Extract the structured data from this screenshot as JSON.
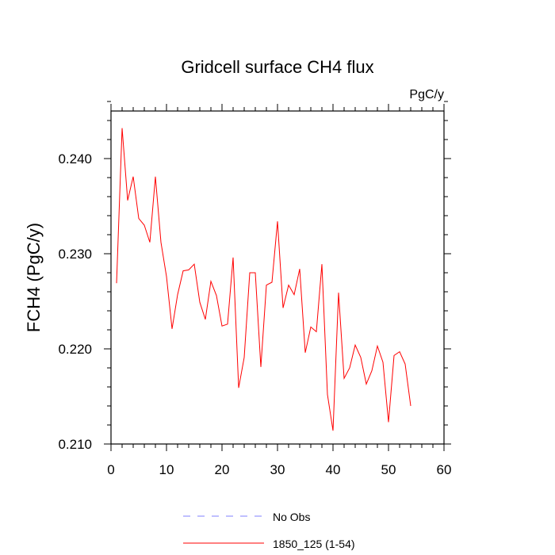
{
  "chart_data": {
    "type": "line",
    "title": "Gridcell surface CH4 flux",
    "units": "PgC/y",
    "ylabel": "FCH4  (PgC/y)",
    "xlabel": "",
    "xlim": [
      0,
      60
    ],
    "ylim": [
      0.21,
      0.245
    ],
    "xticks": [
      0,
      10,
      20,
      30,
      40,
      50,
      60
    ],
    "xtick_labels": [
      "0",
      "10",
      "20",
      "30",
      "40",
      "50",
      "60"
    ],
    "yticks": [
      0.21,
      0.22,
      0.23,
      0.24
    ],
    "ytick_labels": [
      "0.210",
      "0.220",
      "0.230",
      "0.240"
    ],
    "grid": false,
    "legend_position": "bottom",
    "series": [
      {
        "name": "No Obs",
        "color": "#8080ff",
        "dash": "dashed",
        "x": [],
        "y": []
      },
      {
        "name": "1850_125 (1-54)",
        "color": "#ff0000",
        "dash": "solid",
        "x": [
          1,
          2,
          3,
          4,
          5,
          6,
          7,
          8,
          9,
          10,
          11,
          12,
          13,
          14,
          15,
          16,
          17,
          18,
          19,
          20,
          21,
          22,
          23,
          24,
          25,
          26,
          27,
          28,
          29,
          30,
          31,
          32,
          33,
          34,
          35,
          36,
          37,
          38,
          39,
          40,
          41,
          42,
          43,
          44,
          45,
          46,
          47,
          48,
          49,
          50,
          51,
          52,
          53,
          54
        ],
        "y": [
          0.2269,
          0.2432,
          0.2356,
          0.2381,
          0.2337,
          0.233,
          0.2312,
          0.2381,
          0.2312,
          0.2276,
          0.2221,
          0.2257,
          0.2282,
          0.2283,
          0.2289,
          0.2249,
          0.2231,
          0.2271,
          0.2256,
          0.2224,
          0.2226,
          0.2296,
          0.2159,
          0.2191,
          0.228,
          0.228,
          0.2181,
          0.2267,
          0.227,
          0.2334,
          0.2243,
          0.2267,
          0.2257,
          0.2284,
          0.2196,
          0.2223,
          0.2218,
          0.2289,
          0.2152,
          0.2114,
          0.2259,
          0.2169,
          0.218,
          0.2204,
          0.2191,
          0.2163,
          0.2177,
          0.2203,
          0.2186,
          0.2123,
          0.2193,
          0.2197,
          0.2184,
          0.214
        ]
      }
    ]
  }
}
